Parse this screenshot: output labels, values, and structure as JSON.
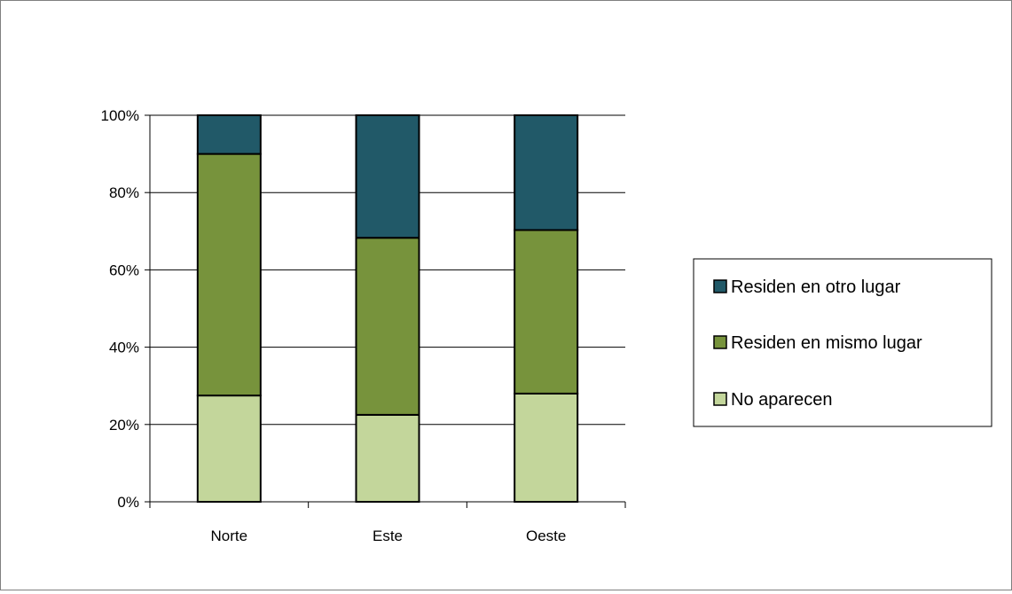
{
  "chart_data": {
    "type": "bar",
    "stacked": true,
    "normalized": true,
    "categories": [
      "Norte",
      "Este",
      "Oeste"
    ],
    "series": [
      {
        "name": "No aparecen",
        "values": [
          27.5,
          22.5,
          28
        ],
        "color": "#c3d69b"
      },
      {
        "name": "Residen en mismo lugar",
        "values": [
          62.5,
          45.8,
          42.3
        ],
        "color": "#77933c"
      },
      {
        "name": "Residen en otro lugar",
        "values": [
          10,
          31.7,
          29.7
        ],
        "color": "#215968"
      }
    ],
    "ylim": [
      0,
      100
    ],
    "yticks": [
      {
        "value": 0,
        "label": "0%"
      },
      {
        "value": 20,
        "label": "20%"
      },
      {
        "value": 40,
        "label": "40%"
      },
      {
        "value": 60,
        "label": "60%"
      },
      {
        "value": 80,
        "label": "80%"
      },
      {
        "value": 100,
        "label": "100%"
      }
    ],
    "grid": true,
    "legend_position": "right",
    "legend_order": [
      "Residen en otro lugar",
      "Residen en mismo lugar",
      "No aparecen"
    ]
  }
}
